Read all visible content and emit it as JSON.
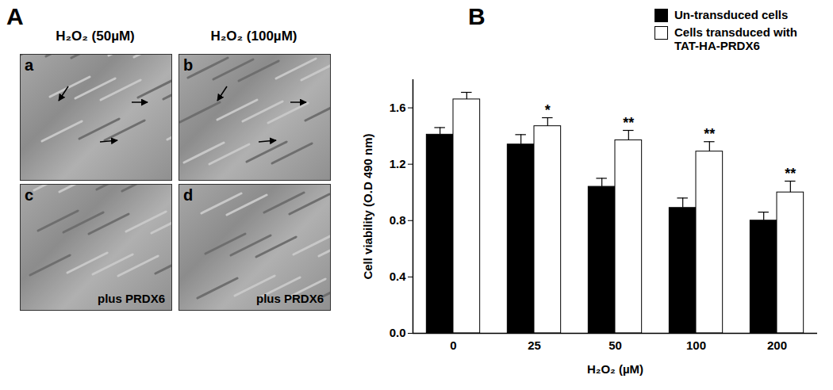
{
  "panel_a": {
    "label": "A",
    "columns": [
      "H₂O₂ (50µM)",
      "H₂O₂ (100µM)"
    ],
    "images": [
      {
        "letter": "a"
      },
      {
        "letter": "b"
      },
      {
        "letter": "c",
        "text": "plus PRDX6"
      },
      {
        "letter": "d",
        "text": "plus PRDX6"
      }
    ]
  },
  "chart_data": {
    "type": "bar",
    "panel_label": "B",
    "x_label": "H₂O₂ (µM)",
    "y_label": "Cell viability (O.D 490 nm)",
    "categories": [
      0,
      25,
      50,
      100,
      200
    ],
    "series": [
      {
        "name": "Un-transduced cells",
        "color": "#000000",
        "values": [
          1.41,
          1.34,
          1.04,
          0.89,
          0.8
        ],
        "errors": [
          0.05,
          0.07,
          0.06,
          0.07,
          0.06
        ]
      },
      {
        "name": "Cells transduced with TAT-HA-PRDX6",
        "color": "#ffffff",
        "values": [
          1.66,
          1.47,
          1.37,
          1.29,
          1.0
        ],
        "errors": [
          0.05,
          0.06,
          0.07,
          0.07,
          0.08
        ],
        "annotations": [
          null,
          "*",
          "**",
          "**",
          "**"
        ]
      }
    ],
    "ylim": [
      0,
      1.8
    ],
    "yticks": [
      {
        "value": 0,
        "label": "0.0"
      },
      0.4,
      0.8,
      1.2,
      1.6
    ],
    "grid": false,
    "legend": "top-right"
  }
}
